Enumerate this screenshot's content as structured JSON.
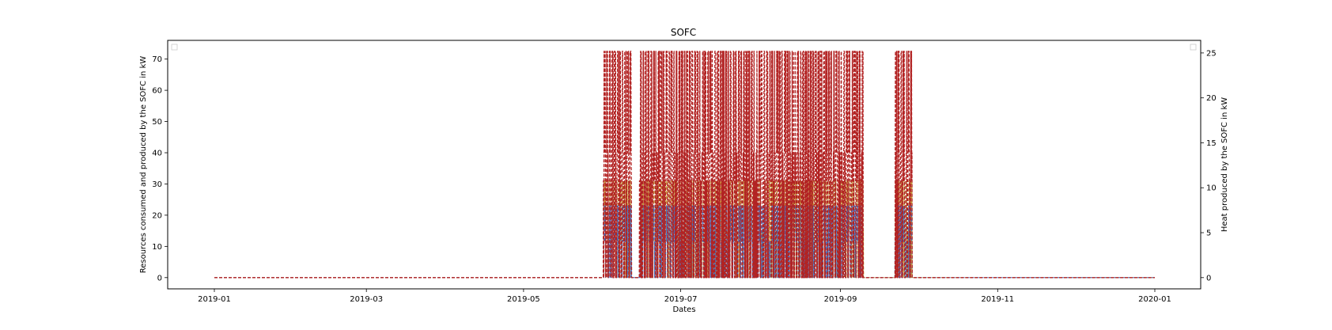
{
  "chart_data": {
    "type": "line",
    "title": "SOFC",
    "xlabel": "Dates",
    "ylabel_left": "Resources consumed and produced by the SOFC in kW",
    "ylabel_right": "Heat produced by the SOFC in kW",
    "x_range": [
      "2019-01-01",
      "2020-01-01"
    ],
    "ylim_left": [
      -3.6,
      76
    ],
    "ylim_right": [
      -1.25,
      26.4
    ],
    "x_ticks": [
      "2019-01",
      "2019-03",
      "2019-05",
      "2019-07",
      "2019-09",
      "2019-11",
      "2020-01"
    ],
    "y_ticks_left": [
      0,
      10,
      20,
      30,
      40,
      50,
      60,
      70
    ],
    "y_ticks_right": [
      0,
      5,
      10,
      15,
      20,
      25
    ],
    "grid": false,
    "legend": "top-left and top-right (empty)",
    "colors": {
      "red": "#b22222",
      "blue": "#4472c4",
      "gold": "#c8a040"
    },
    "series": [
      {
        "color": "#b22222",
        "linestyle": "dashed",
        "axis": "left",
        "levels": [
          0,
          31,
          40,
          72.5
        ],
        "active_periods": [
          [
            "2019-06-01",
            "2019-06-12"
          ],
          [
            "2019-06-15",
            "2019-08-27"
          ],
          [
            "2019-08-27",
            "2019-09-10"
          ],
          [
            "2019-09-22",
            "2019-09-29"
          ]
        ]
      },
      {
        "color": "#4472c4",
        "linestyle": "dashed",
        "axis": "right",
        "levels": [
          0,
          4,
          8
        ],
        "active_periods": [
          [
            "2019-06-01",
            "2019-06-12"
          ],
          [
            "2019-06-15",
            "2019-08-27"
          ],
          [
            "2019-08-27",
            "2019-09-10"
          ],
          [
            "2019-09-22",
            "2019-09-29"
          ]
        ]
      },
      {
        "color": "#c8a040",
        "linestyle": "dashed",
        "axis": "left",
        "levels": [
          0,
          15,
          31
        ],
        "active_periods": [
          [
            "2019-06-01",
            "2019-06-12"
          ],
          [
            "2019-06-15",
            "2019-08-27"
          ],
          [
            "2019-08-27",
            "2019-09-10"
          ],
          [
            "2019-09-22",
            "2019-09-29"
          ]
        ]
      }
    ]
  }
}
